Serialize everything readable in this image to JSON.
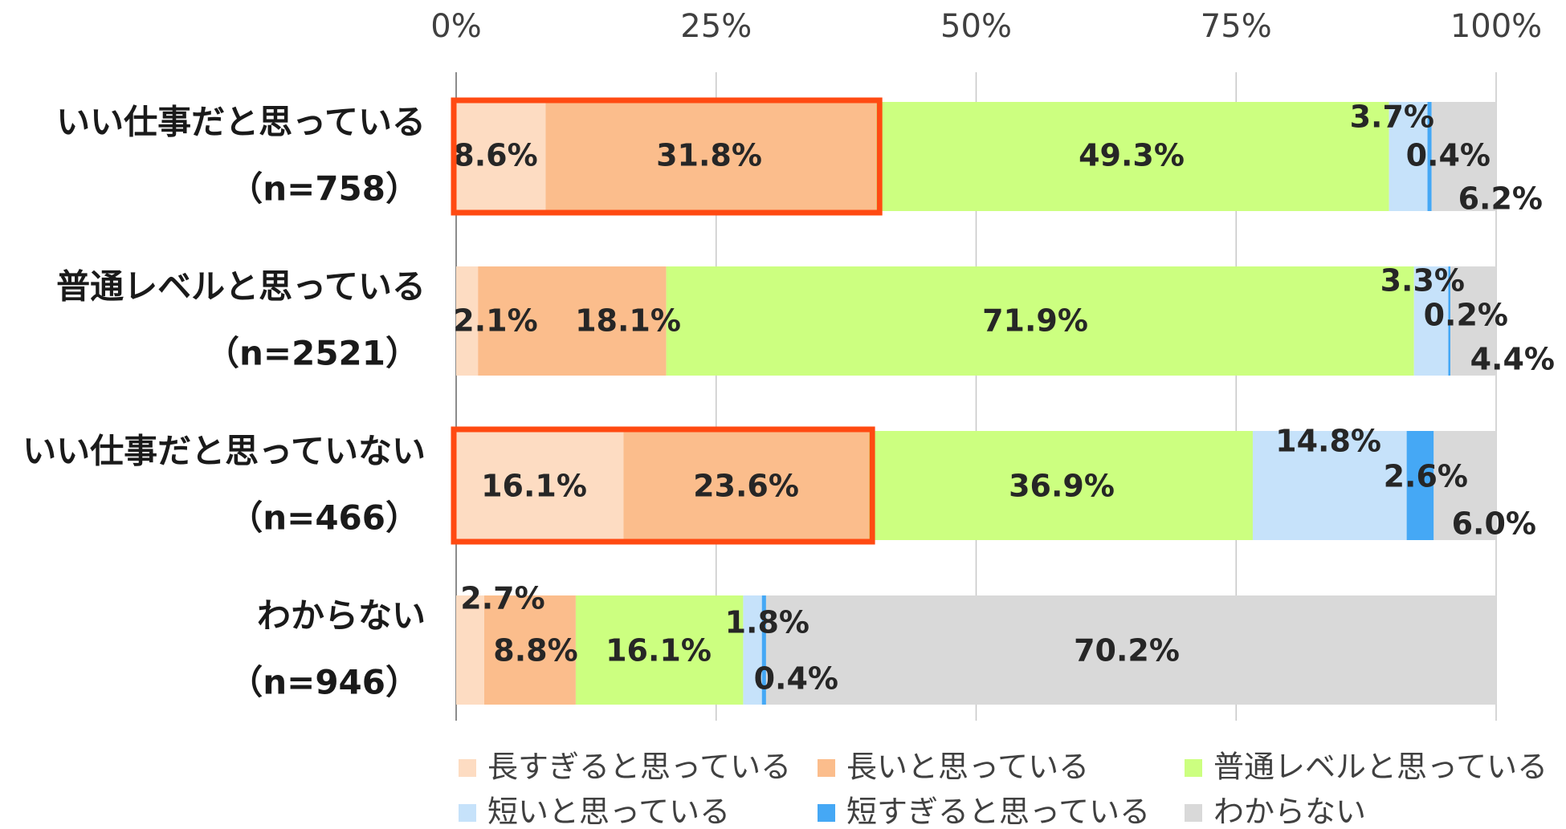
{
  "chart_data": {
    "type": "bar",
    "orientation": "horizontal",
    "stacked": "percent",
    "x_ticks": [
      "0%",
      "25%",
      "50%",
      "75%",
      "100%"
    ],
    "xlim": [
      0,
      100
    ],
    "grid": "vertical",
    "legend_position": "bottom",
    "categories": [
      {
        "name": "いい仕事だと思っている",
        "n": "（n=758）"
      },
      {
        "name": "普通レベルと思っている",
        "n": "（n=2521）"
      },
      {
        "name": "いい仕事だと思っていない",
        "n": "（n=466）"
      },
      {
        "name": "わからない",
        "n": "（n=946）"
      }
    ],
    "series": [
      {
        "name": "長すぎると思っている",
        "color": "#FDDCC2",
        "values": [
          8.6,
          2.1,
          16.1,
          2.7
        ],
        "labels": [
          "8.6%",
          "2.1%",
          "16.1%",
          "2.7%"
        ]
      },
      {
        "name": "長いと思っている",
        "color": "#FBBD8C",
        "values": [
          31.8,
          18.1,
          23.6,
          8.8
        ],
        "labels": [
          "31.8%",
          "18.1%",
          "23.6%",
          "8.8%"
        ]
      },
      {
        "name": "普通レベルと思っている",
        "color": "#CCFF80",
        "values": [
          49.3,
          71.9,
          36.9,
          16.1
        ],
        "labels": [
          "49.3%",
          "71.9%",
          "36.9%",
          "16.1%"
        ]
      },
      {
        "name": "短いと思っている",
        "color": "#C6E2FA",
        "values": [
          3.7,
          3.3,
          14.8,
          1.8
        ],
        "labels": [
          "3.7%",
          "3.3%",
          "14.8%",
          "1.8%"
        ]
      },
      {
        "name": "短すぎると思っている",
        "color": "#45A8F5",
        "values": [
          0.4,
          0.2,
          2.6,
          0.4
        ],
        "labels": [
          "0.4%",
          "0.2%",
          "2.6%",
          "0.4%"
        ]
      },
      {
        "name": "わからない",
        "color": "#D9D9D9",
        "values": [
          6.2,
          4.4,
          6.0,
          70.2
        ],
        "labels": [
          "6.2%",
          "4.4%",
          "6.0%",
          "70.2%"
        ]
      }
    ],
    "highlights": [
      {
        "category_index": 0,
        "series_from": 0,
        "series_to": 1,
        "color": "#FF4A12"
      },
      {
        "category_index": 2,
        "series_from": 0,
        "series_to": 1,
        "color": "#FF4A12"
      }
    ]
  }
}
